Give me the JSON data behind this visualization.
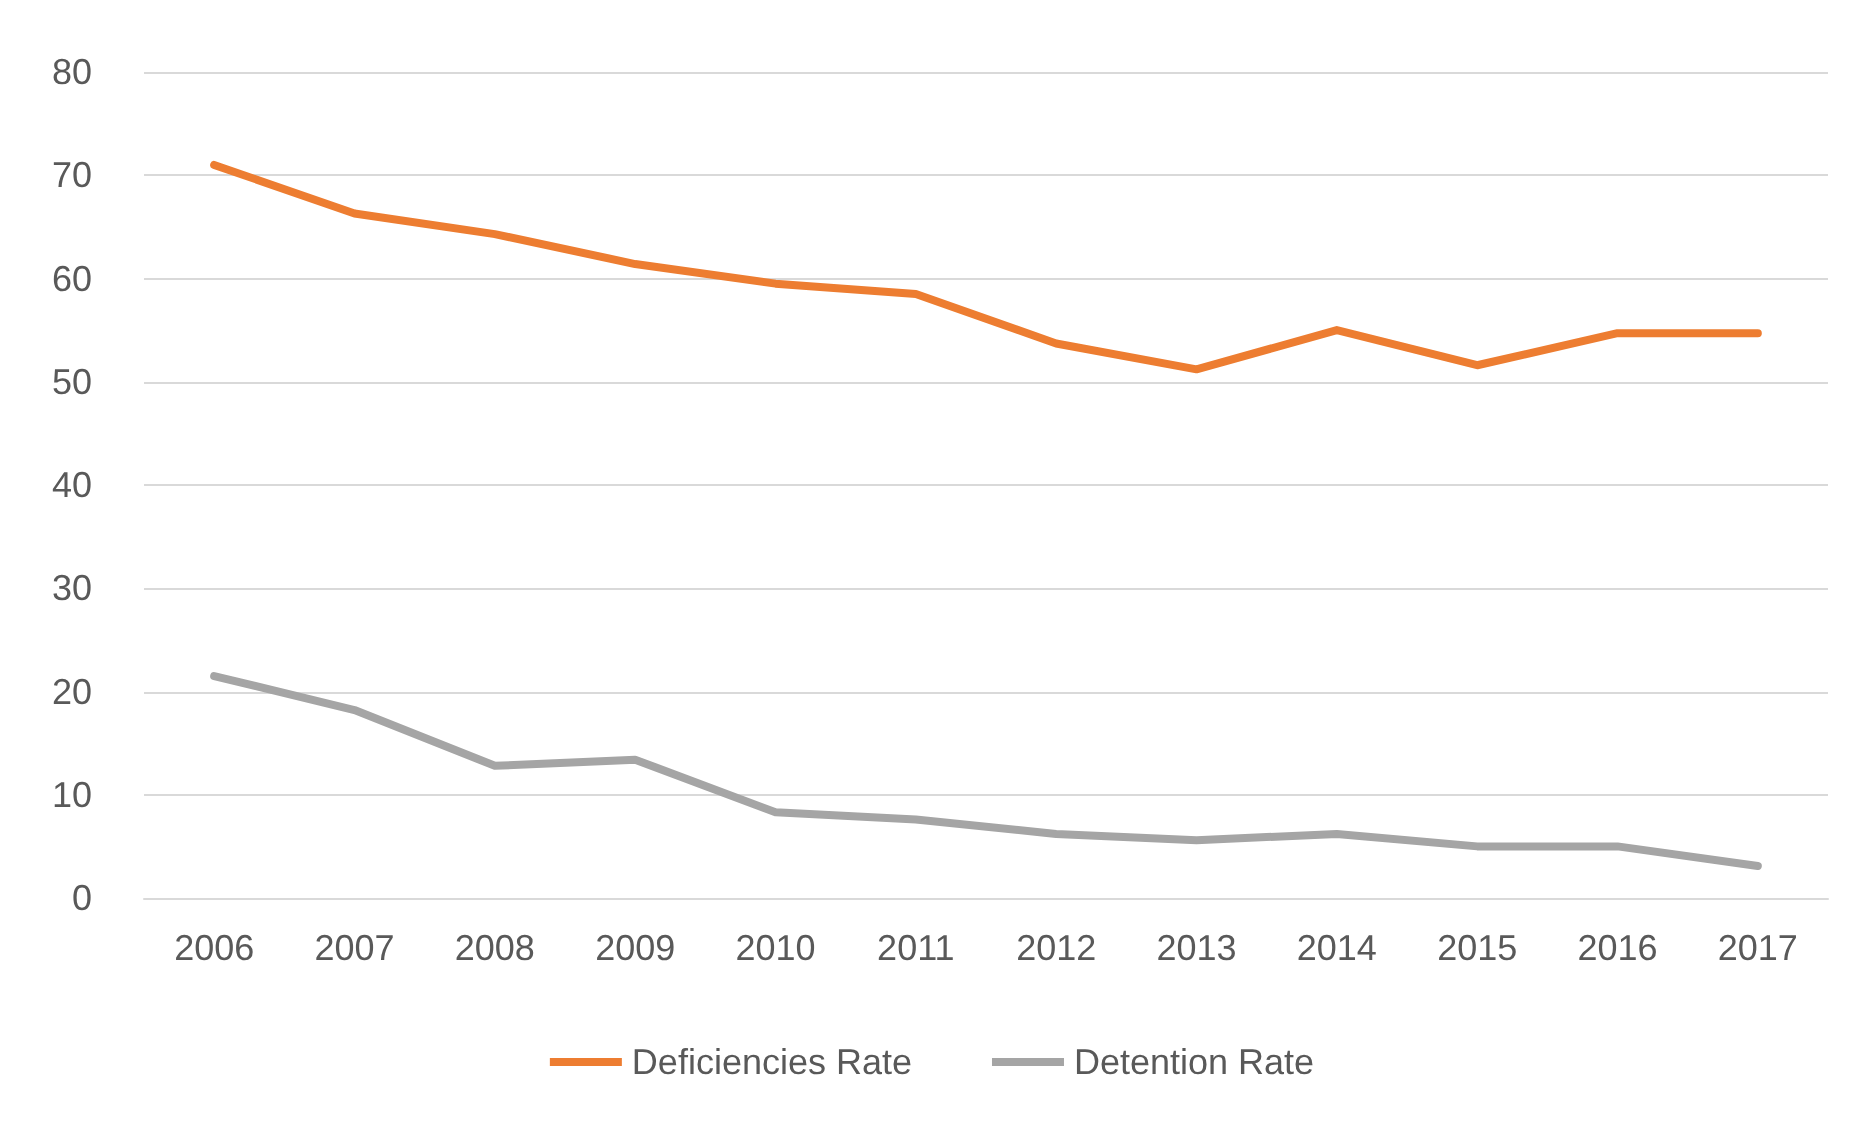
{
  "chart_data": {
    "type": "line",
    "categories": [
      "2006",
      "2007",
      "2008",
      "2009",
      "2010",
      "2011",
      "2012",
      "2013",
      "2014",
      "2015",
      "2016",
      "2017"
    ],
    "series": [
      {
        "name": "Deficiencies Rate",
        "color": "#ed7d31",
        "values": [
          71,
          66.3,
          64.3,
          61.4,
          59.5,
          58.5,
          53.7,
          51.2,
          55,
          51.6,
          54.7,
          54.7
        ]
      },
      {
        "name": "Detention Rate",
        "color": "#a5a5a5",
        "values": [
          21.5,
          18.2,
          12.8,
          13.4,
          8.3,
          7.6,
          6.2,
          5.6,
          6.2,
          5,
          5,
          3.1
        ]
      }
    ],
    "ylim": [
      0,
      80
    ],
    "yticks": [
      0,
      10,
      20,
      30,
      40,
      50,
      60,
      70,
      80
    ],
    "grid": "y",
    "legend": "bottom",
    "marker": "none",
    "line_style": "solid"
  }
}
